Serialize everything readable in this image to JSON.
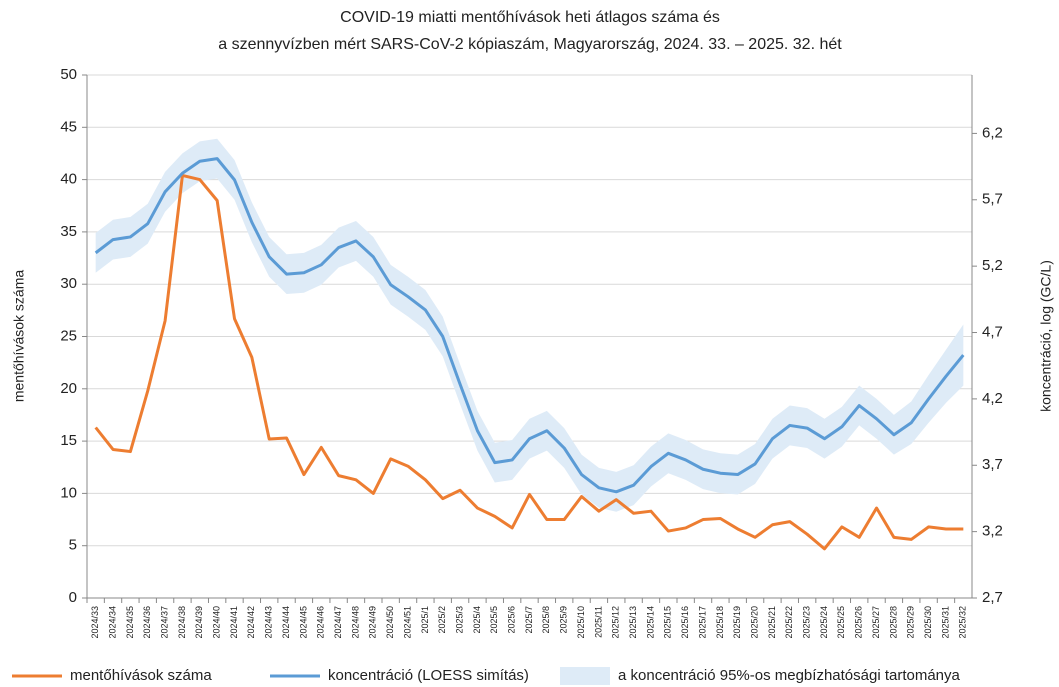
{
  "chart_data": {
    "type": "line",
    "title": [
      "COVID-19 miatti mentőhívások heti átlagos száma és",
      "a szennyvízben mért SARS-CoV-2 kópiaszám, Magyarország, 2024. 33. – 2025. 32. hét"
    ],
    "y_label": "mentőhívások száma",
    "y2_label": "koncentráció, log (GC/L)",
    "categories": [
      "2024/33",
      "2024/34",
      "2024/35",
      "2024/36",
      "2024/37",
      "2024/38",
      "2024/39",
      "2024/40",
      "2024/41",
      "2024/42",
      "2024/43",
      "2024/44",
      "2024/45",
      "2024/46",
      "2024/47",
      "2024/48",
      "2024/49",
      "2024/50",
      "2024/51",
      "2025/1",
      "2025/2",
      "2025/3",
      "2025/4",
      "2025/5",
      "2025/6",
      "2025/7",
      "2025/8",
      "2025/9",
      "2025/10",
      "2025/11",
      "2025/12",
      "2025/13",
      "2025/14",
      "2025/15",
      "2025/16",
      "2025/17",
      "2025/18",
      "2025/19",
      "2025/20",
      "2025/21",
      "2025/22",
      "2025/23",
      "2025/24",
      "2025/25",
      "2025/26",
      "2025/27",
      "2025/28",
      "2025/29",
      "2025/30",
      "2025/31",
      "2025/32"
    ],
    "series": [
      {
        "name": "mentőhívások száma",
        "color": "#ed7d31",
        "axis": "y",
        "values": [
          16.3,
          14.2,
          14,
          19.8,
          26.5,
          40.4,
          40,
          38,
          26.7,
          23,
          15.2,
          15.3,
          11.8,
          14.4,
          11.7,
          11.3,
          10,
          13.3,
          12.6,
          11.3,
          9.5,
          10.3,
          8.6,
          7.8,
          6.7,
          9.9,
          7.5,
          7.5,
          9.7,
          8.3,
          9.4,
          8.1,
          8.3,
          6.4,
          6.7,
          7.5,
          7.6,
          6.6,
          5.8,
          7,
          7.3,
          6.1,
          4.7,
          6.8,
          5.8,
          8.6,
          5.8,
          5.6,
          6.8,
          6.6,
          6.6
        ]
      },
      {
        "name": "koncentráció (LOESS simítás)",
        "color": "#5b9bd5",
        "axis": "y2",
        "values": [
          5.3,
          5.4,
          5.42,
          5.52,
          5.76,
          5.9,
          5.99,
          6.01,
          5.85,
          5.53,
          5.27,
          5.14,
          5.15,
          5.21,
          5.34,
          5.39,
          5.27,
          5.06,
          4.97,
          4.87,
          4.67,
          4.31,
          3.96,
          3.72,
          3.74,
          3.9,
          3.96,
          3.83,
          3.63,
          3.53,
          3.5,
          3.55,
          3.69,
          3.79,
          3.74,
          3.67,
          3.64,
          3.63,
          3.71,
          3.9,
          4.0,
          3.98,
          3.9,
          3.99,
          4.15,
          4.05,
          3.93,
          4.02,
          4.2,
          4.37,
          4.53
        ]
      },
      {
        "name": "a koncentráció 95%-os megbízhatósági tartománya",
        "color": "#deebf7",
        "axis": "y2",
        "type": "band",
        "upper": [
          5.45,
          5.55,
          5.57,
          5.67,
          5.91,
          6.05,
          6.14,
          6.16,
          6.0,
          5.68,
          5.42,
          5.29,
          5.3,
          5.36,
          5.49,
          5.54,
          5.42,
          5.21,
          5.12,
          5.02,
          4.82,
          4.46,
          4.11,
          3.87,
          3.89,
          4.05,
          4.11,
          3.98,
          3.78,
          3.68,
          3.65,
          3.7,
          3.84,
          3.94,
          3.89,
          3.82,
          3.79,
          3.78,
          3.86,
          4.05,
          4.15,
          4.13,
          4.05,
          4.14,
          4.3,
          4.2,
          4.08,
          4.18,
          4.38,
          4.57,
          4.76
        ],
        "lower": [
          5.15,
          5.25,
          5.27,
          5.37,
          5.61,
          5.75,
          5.84,
          5.86,
          5.7,
          5.38,
          5.12,
          4.99,
          5.0,
          5.06,
          5.19,
          5.24,
          5.12,
          4.91,
          4.82,
          4.72,
          4.52,
          4.16,
          3.81,
          3.57,
          3.59,
          3.75,
          3.81,
          3.68,
          3.48,
          3.38,
          3.35,
          3.4,
          3.54,
          3.64,
          3.59,
          3.52,
          3.49,
          3.48,
          3.56,
          3.75,
          3.85,
          3.83,
          3.75,
          3.84,
          4.0,
          3.9,
          3.78,
          3.86,
          4.02,
          4.17,
          4.3
        ]
      }
    ],
    "ylim": [
      0,
      50
    ],
    "yticks": [
      0,
      5,
      10,
      15,
      20,
      25,
      30,
      35,
      40,
      45,
      50
    ],
    "y2lim": [
      2.7,
      6.64
    ],
    "y2ticks": [
      {
        "value": 2.7,
        "label": "2,7"
      },
      {
        "value": 3.2,
        "label": "3,2"
      },
      {
        "value": 3.7,
        "label": "3,7"
      },
      {
        "value": 4.2,
        "label": "4,2"
      },
      {
        "value": 4.7,
        "label": "4,7"
      },
      {
        "value": 5.2,
        "label": "5,2"
      },
      {
        "value": 5.7,
        "label": "5,7"
      },
      {
        "value": 6.2,
        "label": "6,2"
      }
    ],
    "grid": true,
    "legend": "bottom"
  }
}
